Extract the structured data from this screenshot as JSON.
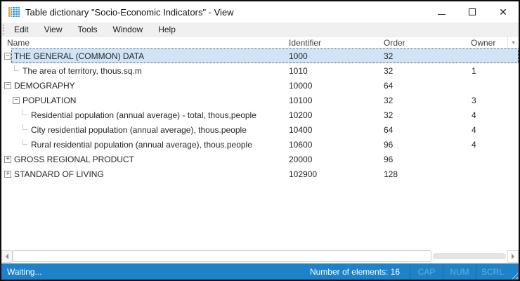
{
  "window": {
    "title": "Table dictionary \"Socio-Economic Indicators\" - View"
  },
  "menu": {
    "items": [
      "Edit",
      "View",
      "Tools",
      "Window",
      "Help"
    ]
  },
  "table": {
    "columns": {
      "name": "Name",
      "identifier": "Identifier",
      "order": "Order",
      "owner": "Owner"
    },
    "rows": [
      {
        "name": "THE GENERAL (COMMON) DATA",
        "identifier": "1000",
        "order": "32",
        "owner": "",
        "level": 0,
        "expand": "minus",
        "selected": true
      },
      {
        "name": "The area of territory, thous.sq.m",
        "identifier": "1010",
        "order": "32",
        "owner": "1",
        "level": 1,
        "expand": "leaf",
        "selected": false
      },
      {
        "name": "DEMOGRAPHY",
        "identifier": "10000",
        "order": "64",
        "owner": "",
        "level": 0,
        "expand": "minus",
        "selected": false
      },
      {
        "name": "POPULATION",
        "identifier": "10100",
        "order": "32",
        "owner": "3",
        "level": 1,
        "expand": "minus",
        "selected": false
      },
      {
        "name": "Residential population (annual average) - total, thous,people",
        "identifier": "10200",
        "order": "32",
        "owner": "4",
        "level": 2,
        "expand": "leaf",
        "selected": false
      },
      {
        "name": "City residential population (annual average), thous.people",
        "identifier": "10400",
        "order": "64",
        "owner": "4",
        "level": 2,
        "expand": "leaf",
        "selected": false
      },
      {
        "name": "Rural residential population (annual average), thous.people",
        "identifier": "10600",
        "order": "96",
        "owner": "4",
        "level": 2,
        "expand": "leaf",
        "selected": false
      },
      {
        "name": "GROSS REGIONAL PRODUCT",
        "identifier": "20000",
        "order": "96",
        "owner": "",
        "level": 0,
        "expand": "plus",
        "selected": false
      },
      {
        "name": "STANDARD OF LIVING",
        "identifier": "102900",
        "order": "128",
        "owner": "",
        "level": 0,
        "expand": "plus",
        "selected": false
      }
    ]
  },
  "statusbar": {
    "status": "Waiting...",
    "elements_count": "Number of elements: 16",
    "indicators": [
      "CAP",
      "NUM",
      "SCRL"
    ]
  },
  "colors": {
    "statusbar_bg": "#1e82c8",
    "selection_bg": "#cfe5f7",
    "icon_blue": "#2e9bd6",
    "icon_orange": "#f2a33c",
    "indicator_disabled": "#6aabd8"
  }
}
